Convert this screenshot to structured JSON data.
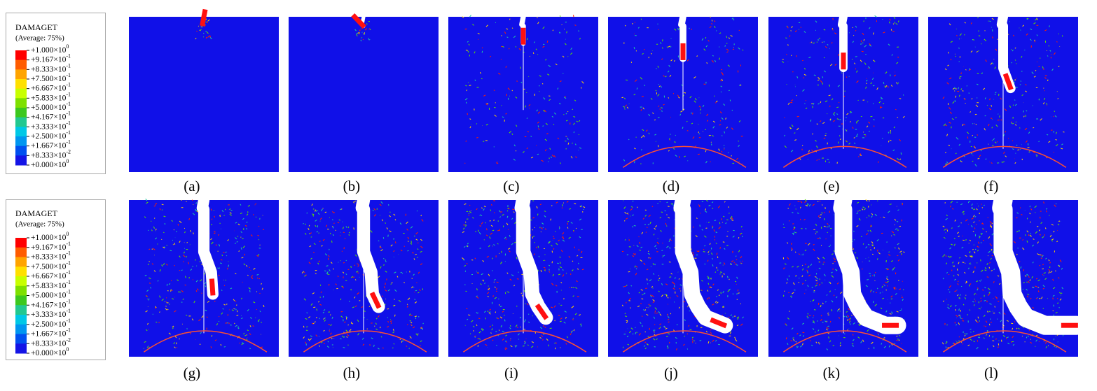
{
  "legends": [
    {
      "title": "DAMAGET",
      "subtitle": "(Average: 75%)",
      "labels": [
        {
          "mantissa": "+1.000×10",
          "exponent": "0"
        },
        {
          "mantissa": "+9.167×10",
          "exponent": "-1"
        },
        {
          "mantissa": "+8.333×10",
          "exponent": "-1"
        },
        {
          "mantissa": "+7.500×10",
          "exponent": "-1"
        },
        {
          "mantissa": "+6.667×10",
          "exponent": "-1"
        },
        {
          "mantissa": "+5.833×10",
          "exponent": "-1"
        },
        {
          "mantissa": "+5.000×10",
          "exponent": "-1"
        },
        {
          "mantissa": "+4.167×10",
          "exponent": "-1"
        },
        {
          "mantissa": "+3.333×10",
          "exponent": "-1"
        },
        {
          "mantissa": "+2.500×10",
          "exponent": "-1"
        },
        {
          "mantissa": "+1.667×10",
          "exponent": "-1"
        },
        {
          "mantissa": "+8.333×10",
          "exponent": "-2"
        },
        {
          "mantissa": "+0.000×10",
          "exponent": "0"
        }
      ]
    },
    {
      "title": "DAMAGET",
      "subtitle": "(Average: 75%)",
      "labels": [
        {
          "mantissa": "+1.000×10",
          "exponent": "0"
        },
        {
          "mantissa": "+9.167×10",
          "exponent": "-1"
        },
        {
          "mantissa": "+8.333×10",
          "exponent": "-1"
        },
        {
          "mantissa": "+7.500×10",
          "exponent": "-1"
        },
        {
          "mantissa": "+6.667×10",
          "exponent": "-1"
        },
        {
          "mantissa": "+5.833×10",
          "exponent": "-1"
        },
        {
          "mantissa": "+5.000×10",
          "exponent": "-1"
        },
        {
          "mantissa": "+4.167×10",
          "exponent": "-1"
        },
        {
          "mantissa": "+3.333×10",
          "exponent": "-1"
        },
        {
          "mantissa": "+2.500×10",
          "exponent": "-1"
        },
        {
          "mantissa": "+1.667×10",
          "exponent": "-1"
        },
        {
          "mantissa": "+8.333×10",
          "exponent": "-2"
        },
        {
          "mantissa": "+0.000×10",
          "exponent": "0"
        }
      ]
    }
  ],
  "panels": [
    "(a)",
    "(b)",
    "(c)",
    "(d)",
    "(e)",
    "(f)",
    "(g)",
    "(h)",
    "(i)",
    "(j)",
    "(k)",
    "(l)"
  ]
}
